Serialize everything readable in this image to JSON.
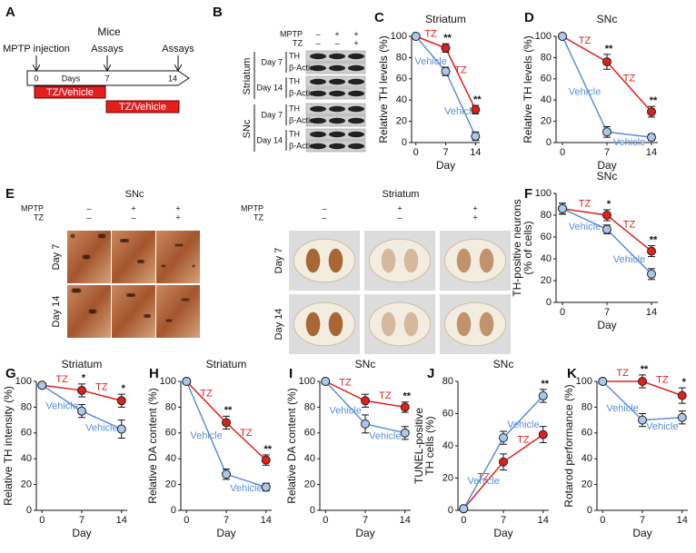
{
  "panel_a": {
    "letter": "A",
    "title": "Mice",
    "events": [
      "MPTP injection",
      "Assays",
      "Assays"
    ],
    "axis_label": "Days",
    "ticks": [
      "0",
      "7",
      "14"
    ],
    "bars": [
      "TZ/Vehicle",
      "TZ/Vehicle"
    ]
  },
  "panel_b": {
    "letter": "B",
    "treatments": [
      {
        "name": "MPTP",
        "signs": [
          "–",
          "+",
          "+"
        ]
      },
      {
        "name": "TZ",
        "signs": [
          "–",
          "–",
          "+"
        ]
      }
    ],
    "regions": [
      {
        "name": "Striatum",
        "days": [
          {
            "day": "Day 7",
            "bands": [
              "TH",
              "β-Actin"
            ]
          },
          {
            "day": "Day 14",
            "bands": [
              "TH",
              "β-Actin"
            ]
          }
        ]
      },
      {
        "name": "SNc",
        "days": [
          {
            "day": "Day 7",
            "bands": [
              "TH",
              "β-Actin"
            ]
          },
          {
            "day": "Day 14",
            "bands": [
              "TH",
              "β-Actin"
            ]
          }
        ]
      }
    ]
  },
  "panel_e": {
    "letter": "E",
    "groups": [
      {
        "title": "SNc",
        "treatments": [
          {
            "name": "MPTP",
            "signs": [
              "–",
              "+",
              "+"
            ]
          },
          {
            "name": "TZ",
            "signs": [
              "–",
              "–",
              "+"
            ]
          }
        ],
        "days": [
          "Day 7",
          "Day 14"
        ]
      },
      {
        "title": "Striatum",
        "treatments": [
          {
            "name": "MPTP",
            "signs": [
              "–",
              "+",
              "+"
            ]
          },
          {
            "name": "TZ",
            "signs": [
              "–",
              "–",
              "+"
            ]
          }
        ],
        "days": [
          "Day 7",
          "Day 14"
        ]
      }
    ]
  },
  "chart_data": [
    {
      "type": "line",
      "panel": "C",
      "title": "Striatum",
      "xlabel": "Day",
      "ylabel": [
        "Relative TH levels (%)"
      ],
      "x": [
        0,
        7,
        14
      ],
      "xlim": [
        -1,
        15
      ],
      "xticks": [
        0,
        7,
        14
      ],
      "ylim": [
        0,
        100
      ],
      "yticks": [
        0,
        20,
        40,
        60,
        80,
        100
      ],
      "series": [
        {
          "name": "TZ",
          "color": "#e0201b",
          "values": [
            100,
            89,
            31
          ],
          "errors": [
            0,
            4,
            4
          ]
        },
        {
          "name": "Vehicle",
          "color": "#5b8fd6",
          "values": [
            100,
            67,
            6
          ],
          "errors": [
            0,
            4,
            4
          ]
        }
      ],
      "significance": [
        null,
        "**",
        "**"
      ]
    },
    {
      "type": "line",
      "panel": "D",
      "title": "SNc",
      "xlabel": "Day",
      "ylabel": [
        "Relative TH levels (%)"
      ],
      "x": [
        0,
        7,
        14
      ],
      "xlim": [
        -1,
        15
      ],
      "xticks": [
        0,
        7,
        14
      ],
      "ylim": [
        0,
        100
      ],
      "yticks": [
        0,
        20,
        40,
        60,
        80,
        100
      ],
      "series": [
        {
          "name": "TZ",
          "color": "#e0201b",
          "values": [
            100,
            76,
            29
          ],
          "errors": [
            0,
            7,
            5
          ]
        },
        {
          "name": "Vehicle",
          "color": "#5b8fd6",
          "values": [
            100,
            10,
            5
          ],
          "errors": [
            0,
            5,
            3
          ]
        }
      ],
      "significance": [
        null,
        "**",
        "**"
      ]
    },
    {
      "type": "line",
      "panel": "F",
      "title": "SNc",
      "xlabel": "Day",
      "ylabel": [
        "TH-positive neurons",
        "(% of cells)"
      ],
      "x": [
        0,
        7,
        14
      ],
      "xlim": [
        -1,
        15
      ],
      "xticks": [
        0,
        7,
        14
      ],
      "ylim": [
        0,
        100
      ],
      "yticks": [
        0,
        20,
        40,
        60,
        80,
        100
      ],
      "series": [
        {
          "name": "TZ",
          "color": "#e0201b",
          "values": [
            86,
            80,
            47
          ],
          "errors": [
            5,
            5,
            5
          ]
        },
        {
          "name": "Vehicle",
          "color": "#5b8fd6",
          "values": [
            86,
            67,
            26
          ],
          "errors": [
            5,
            4,
            5
          ]
        }
      ],
      "significance": [
        null,
        "*",
        "**"
      ]
    },
    {
      "type": "line",
      "panel": "G",
      "title": "Striatum",
      "xlabel": "Day",
      "ylabel": [
        "Relative TH intensity (%)"
      ],
      "x": [
        0,
        7,
        14
      ],
      "xlim": [
        -1,
        15
      ],
      "xticks": [
        0,
        7,
        14
      ],
      "ylim": [
        0,
        100
      ],
      "yticks": [
        0,
        20,
        40,
        60,
        80,
        100
      ],
      "series": [
        {
          "name": "TZ",
          "color": "#e0201b",
          "values": [
            97,
            93,
            85
          ],
          "errors": [
            2,
            5,
            5
          ]
        },
        {
          "name": "Vehicle",
          "color": "#5b8fd6",
          "values": [
            97,
            77,
            63
          ],
          "errors": [
            2,
            5,
            7
          ]
        }
      ],
      "significance": [
        null,
        "*",
        "*"
      ]
    },
    {
      "type": "line",
      "panel": "H",
      "title": "Striatum",
      "xlabel": "Day",
      "ylabel": [
        "Relative DA content (%)"
      ],
      "x": [
        0,
        7,
        14
      ],
      "xlim": [
        -1,
        15
      ],
      "xticks": [
        0,
        7,
        14
      ],
      "ylim": [
        0,
        100
      ],
      "yticks": [
        0,
        20,
        40,
        60,
        80,
        100
      ],
      "series": [
        {
          "name": "TZ",
          "color": "#e0201b",
          "values": [
            100,
            68,
            39
          ],
          "errors": [
            0,
            5,
            4
          ]
        },
        {
          "name": "Vehicle",
          "color": "#5b8fd6",
          "values": [
            100,
            28,
            18
          ],
          "errors": [
            0,
            4,
            3
          ]
        }
      ],
      "significance": [
        null,
        "**",
        "**"
      ]
    },
    {
      "type": "line",
      "panel": "I",
      "title": "SNc",
      "xlabel": "Day",
      "ylabel": [
        "Relative DA content (%)"
      ],
      "x": [
        0,
        7,
        14
      ],
      "xlim": [
        -1,
        15
      ],
      "xticks": [
        0,
        7,
        14
      ],
      "ylim": [
        0,
        100
      ],
      "yticks": [
        0,
        20,
        40,
        60,
        80,
        100
      ],
      "series": [
        {
          "name": "TZ",
          "color": "#e0201b",
          "values": [
            100,
            85,
            80
          ],
          "errors": [
            0,
            5,
            4
          ]
        },
        {
          "name": "Vehicle",
          "color": "#5b8fd6",
          "values": [
            100,
            67,
            60
          ],
          "errors": [
            0,
            7,
            5
          ]
        }
      ],
      "significance": [
        null,
        null,
        "**"
      ]
    },
    {
      "type": "line",
      "panel": "J",
      "title": "SNc",
      "xlabel": "Day",
      "ylabel": [
        "TUNEL-positive",
        "TH cells (%)"
      ],
      "x": [
        0,
        7,
        14
      ],
      "xlim": [
        -1,
        15
      ],
      "xticks": [
        0,
        7,
        14
      ],
      "ylim": [
        0,
        80
      ],
      "yticks": [
        0,
        20,
        40,
        60,
        80
      ],
      "series": [
        {
          "name": "TZ",
          "color": "#e0201b",
          "values": [
            1,
            30,
            47
          ],
          "errors": [
            1,
            5,
            5
          ]
        },
        {
          "name": "Vehicle",
          "color": "#5b8fd6",
          "values": [
            1,
            45,
            71
          ],
          "errors": [
            1,
            4,
            4
          ]
        }
      ],
      "significance": [
        null,
        null,
        "**"
      ]
    },
    {
      "type": "line",
      "panel": "K",
      "title": null,
      "xlabel": "Day",
      "ylabel": [
        "Rotarod performance (%)"
      ],
      "x": [
        0,
        7,
        14
      ],
      "xlim": [
        -1,
        15
      ],
      "xticks": [
        0,
        7,
        14
      ],
      "ylim": [
        0,
        100
      ],
      "yticks": [
        0,
        20,
        40,
        60,
        80,
        100
      ],
      "series": [
        {
          "name": "TZ",
          "color": "#e0201b",
          "values": [
            100,
            100,
            89
          ],
          "errors": [
            0,
            5,
            6
          ]
        },
        {
          "name": "Vehicle",
          "color": "#5b8fd6",
          "values": [
            100,
            70,
            72
          ],
          "errors": [
            0,
            5,
            5
          ]
        }
      ],
      "significance": [
        null,
        "**",
        "*"
      ]
    }
  ]
}
